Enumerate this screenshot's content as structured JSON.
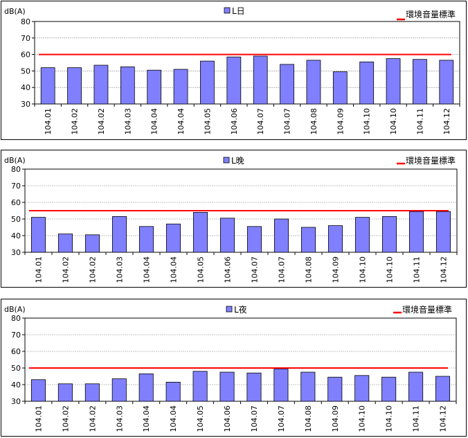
{
  "chart_data": [
    {
      "type": "bar",
      "legend_bar": "L日",
      "legend_line": "環境音量標準",
      "ylabel": "dB(A)",
      "ylim": [
        30,
        80
      ],
      "yticks": [
        30,
        40,
        50,
        60,
        70,
        80
      ],
      "categories": [
        "104.01",
        "104.02",
        "104.02",
        "104.03",
        "104.04",
        "104.04",
        "104.05",
        "104.06",
        "104.07",
        "104.07",
        "104.08",
        "104.09",
        "104.10",
        "104.10",
        "104.11",
        "104.12"
      ],
      "values": [
        52,
        52,
        53.5,
        52.5,
        50.5,
        51,
        56,
        58.5,
        59,
        54,
        56.5,
        49.5,
        55.5,
        57.5,
        57,
        56.5
      ],
      "standard": 60,
      "bar_color": "#8080ff",
      "line_color": "#ff0000",
      "grid": true
    },
    {
      "type": "bar",
      "legend_bar": "L晚",
      "legend_line": "環境音量標準",
      "ylabel": "dB(A)",
      "ylim": [
        30,
        80
      ],
      "yticks": [
        30,
        40,
        50,
        60,
        70,
        80
      ],
      "categories": [
        "104.01",
        "104.02",
        "104.02",
        "104.03",
        "104.04",
        "104.04",
        "104.05",
        "104.06",
        "104.07",
        "104.07",
        "104.08",
        "104.09",
        "104.10",
        "104.10",
        "104.11",
        "104.12"
      ],
      "values": [
        51,
        41,
        40.5,
        51.5,
        45.5,
        47,
        54,
        50.5,
        45.5,
        50,
        45,
        46,
        51,
        51.5,
        54.5,
        54.5
      ],
      "standard": 55,
      "bar_color": "#8080ff",
      "line_color": "#ff0000",
      "grid": true
    },
    {
      "type": "bar",
      "legend_bar": "L夜",
      "legend_line": "環境音量標準",
      "ylabel": "dB(A)",
      "ylim": [
        30,
        80
      ],
      "yticks": [
        30,
        40,
        50,
        60,
        70,
        80
      ],
      "categories": [
        "104.01",
        "104.02",
        "104.02",
        "104.03",
        "104.04",
        "104.04",
        "104.05",
        "104.06",
        "104.07",
        "104.07",
        "104.08",
        "104.09",
        "104.10",
        "104.10",
        "104.11",
        "104.12"
      ],
      "values": [
        43,
        40.5,
        40.5,
        43.5,
        46.5,
        41.5,
        48,
        47.5,
        47,
        49.5,
        47.5,
        44.5,
        45.5,
        44.5,
        47.5,
        45
      ],
      "standard": 50,
      "bar_color": "#8080ff",
      "line_color": "#ff0000",
      "grid": true
    }
  ]
}
